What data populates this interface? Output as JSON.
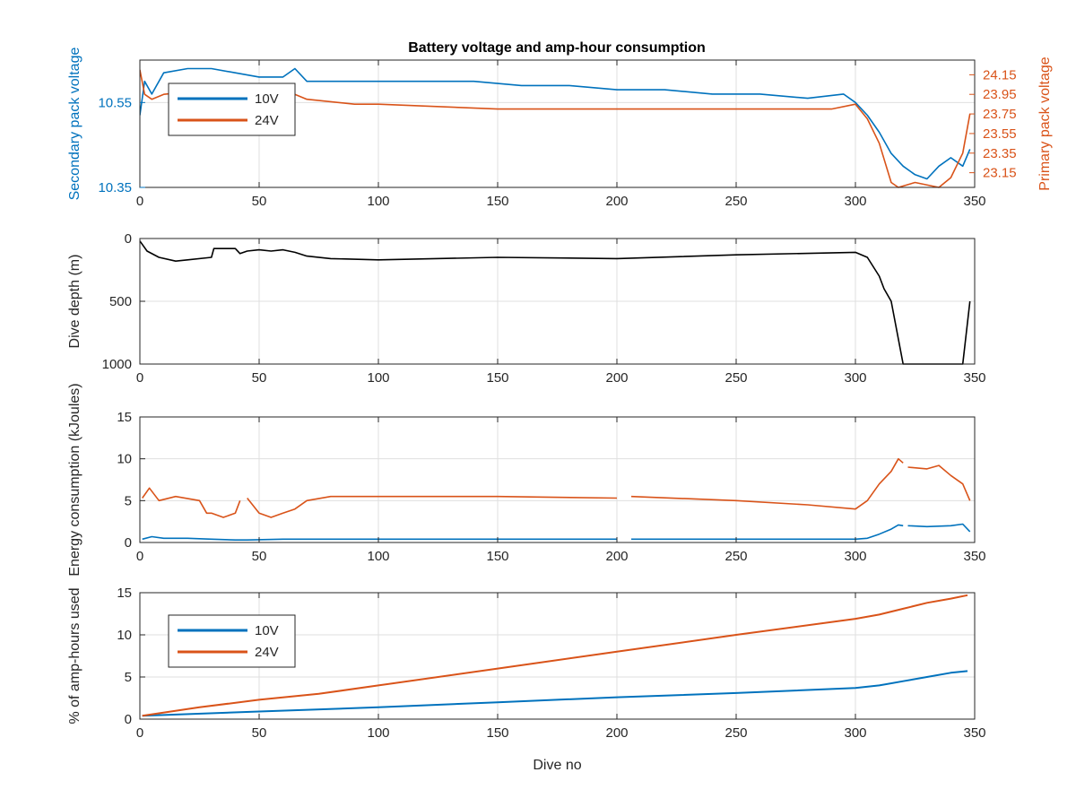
{
  "figure_title": "Battery voltage and amp-hour consumption",
  "colors": {
    "series_10V": "#0072BD",
    "series_24V": "#D95319",
    "depth": "#000000",
    "axis": "#262626",
    "grid": "#DFDFDF"
  },
  "chart_data": [
    {
      "type": "line",
      "title": "Battery voltage and amp-hour consumption",
      "xlabel": "",
      "ylabel": "Secondary pack voltage",
      "ylabel_right": "Primary pack voltage",
      "xlim": [
        0,
        350
      ],
      "ylim": [
        10.35,
        10.65
      ],
      "ylim_right": [
        23.0,
        24.3
      ],
      "x_ticks": [
        0,
        50,
        100,
        150,
        200,
        250,
        300,
        350
      ],
      "y_ticks": [
        10.35,
        10.55
      ],
      "y_ticks_right": [
        23.15,
        23.35,
        23.55,
        23.75,
        23.95,
        24.15
      ],
      "legend": {
        "position": "top-left",
        "entries": [
          "10V",
          "24V"
        ]
      },
      "grid": true,
      "series": [
        {
          "name": "10V",
          "axis": "left",
          "x": [
            0,
            2,
            5,
            10,
            20,
            30,
            40,
            50,
            60,
            65,
            70,
            80,
            90,
            100,
            120,
            140,
            160,
            180,
            200,
            220,
            240,
            260,
            280,
            295,
            300,
            305,
            310,
            315,
            320,
            325,
            330,
            335,
            340,
            345,
            348
          ],
          "y": [
            10.52,
            10.6,
            10.57,
            10.62,
            10.63,
            10.63,
            10.62,
            10.61,
            10.61,
            10.63,
            10.6,
            10.6,
            10.6,
            10.6,
            10.6,
            10.6,
            10.59,
            10.59,
            10.58,
            10.58,
            10.57,
            10.57,
            10.56,
            10.57,
            10.55,
            10.52,
            10.48,
            10.43,
            10.4,
            10.38,
            10.37,
            10.4,
            10.42,
            10.4,
            10.44
          ]
        },
        {
          "name": "24V",
          "axis": "right",
          "x": [
            0,
            2,
            5,
            10,
            30,
            45,
            50,
            60,
            70,
            90,
            100,
            150,
            200,
            250,
            290,
            300,
            305,
            310,
            315,
            318,
            325,
            335,
            340,
            345,
            348
          ],
          "y": [
            24.2,
            23.95,
            23.9,
            23.95,
            24.0,
            24.05,
            24.05,
            24.0,
            23.9,
            23.85,
            23.85,
            23.8,
            23.8,
            23.8,
            23.8,
            23.85,
            23.7,
            23.45,
            23.05,
            23.0,
            23.05,
            23.0,
            23.1,
            23.35,
            23.75
          ]
        }
      ]
    },
    {
      "type": "line",
      "title": "",
      "xlabel": "",
      "ylabel": "Dive depth (m)",
      "xlim": [
        0,
        350
      ],
      "ylim": [
        0,
        1000
      ],
      "y_reversed": true,
      "x_ticks": [
        0,
        50,
        100,
        150,
        200,
        250,
        300,
        350
      ],
      "y_ticks": [
        0,
        500,
        1000
      ],
      "grid": true,
      "series": [
        {
          "x": [
            0,
            3,
            8,
            15,
            20,
            30,
            31,
            33,
            40,
            42,
            45,
            50,
            55,
            60,
            65,
            70,
            80,
            100,
            150,
            200,
            250,
            300,
            305,
            310,
            312,
            315,
            320,
            330,
            340,
            345,
            348
          ],
          "y": [
            20,
            100,
            150,
            180,
            170,
            150,
            80,
            80,
            80,
            120,
            100,
            90,
            100,
            90,
            110,
            140,
            160,
            170,
            150,
            160,
            130,
            110,
            150,
            300,
            400,
            500,
            1000,
            1000,
            1000,
            1000,
            500
          ]
        }
      ]
    },
    {
      "type": "line",
      "title": "",
      "xlabel": "",
      "ylabel": "Energy consumption (kJoules)",
      "xlim": [
        0,
        350
      ],
      "ylim": [
        0,
        15
      ],
      "x_ticks": [
        0,
        50,
        100,
        150,
        200,
        250,
        300,
        350
      ],
      "y_ticks": [
        0,
        5,
        10,
        15
      ],
      "grid": true,
      "series": [
        {
          "name": "10V",
          "x": [
            1,
            5,
            10,
            20,
            30,
            40,
            45,
            60,
            80,
            100,
            150,
            200,
            null,
            206,
            250,
            300,
            305,
            310,
            315,
            318,
            320,
            null,
            322,
            330,
            340,
            345,
            348
          ],
          "y": [
            0.4,
            0.7,
            0.5,
            0.5,
            0.4,
            0.3,
            0.3,
            0.4,
            0.4,
            0.4,
            0.4,
            0.4,
            null,
            0.4,
            0.4,
            0.4,
            0.5,
            1.0,
            1.6,
            2.1,
            2.0,
            null,
            2.0,
            1.9,
            2.0,
            2.2,
            1.3
          ]
        },
        {
          "name": "24V",
          "x": [
            1,
            4,
            8,
            15,
            25,
            28,
            30,
            35,
            40,
            42,
            null,
            45,
            50,
            55,
            60,
            65,
            70,
            80,
            100,
            150,
            200,
            null,
            206,
            250,
            280,
            300,
            305,
            310,
            315,
            318,
            320,
            null,
            322,
            330,
            335,
            340,
            345,
            348
          ],
          "y": [
            5.3,
            6.5,
            5.0,
            5.5,
            5.0,
            3.5,
            3.5,
            3.0,
            3.5,
            5.0,
            null,
            5.3,
            3.5,
            3.0,
            3.5,
            4.0,
            5.0,
            5.5,
            5.5,
            5.5,
            5.3,
            null,
            5.5,
            5.0,
            4.5,
            4.0,
            5.0,
            7.0,
            8.5,
            10.0,
            9.5,
            null,
            9.0,
            8.8,
            9.2,
            8.0,
            7.0,
            5.0
          ]
        }
      ]
    },
    {
      "type": "line",
      "title": "",
      "xlabel": "Dive no",
      "ylabel": "% of amp-hours used",
      "xlim": [
        0,
        350
      ],
      "ylim": [
        0,
        15
      ],
      "x_ticks": [
        0,
        50,
        100,
        150,
        200,
        250,
        300,
        350
      ],
      "y_ticks": [
        0,
        5,
        10,
        15
      ],
      "legend": {
        "position": "top-left",
        "entries": [
          "10V",
          "24V"
        ]
      },
      "grid": true,
      "series": [
        {
          "name": "10V",
          "x": [
            1,
            50,
            100,
            150,
            200,
            250,
            300,
            310,
            320,
            330,
            340,
            347
          ],
          "y": [
            0.4,
            0.9,
            1.4,
            2.0,
            2.6,
            3.1,
            3.7,
            4.0,
            4.5,
            5.0,
            5.5,
            5.7
          ]
        },
        {
          "name": "24V",
          "x": [
            1,
            25,
            50,
            75,
            100,
            150,
            200,
            250,
            300,
            310,
            320,
            330,
            340,
            347
          ],
          "y": [
            0.4,
            1.4,
            2.3,
            3.0,
            4.0,
            6.0,
            8.0,
            10.0,
            11.9,
            12.4,
            13.1,
            13.8,
            14.3,
            14.7
          ]
        }
      ]
    }
  ]
}
